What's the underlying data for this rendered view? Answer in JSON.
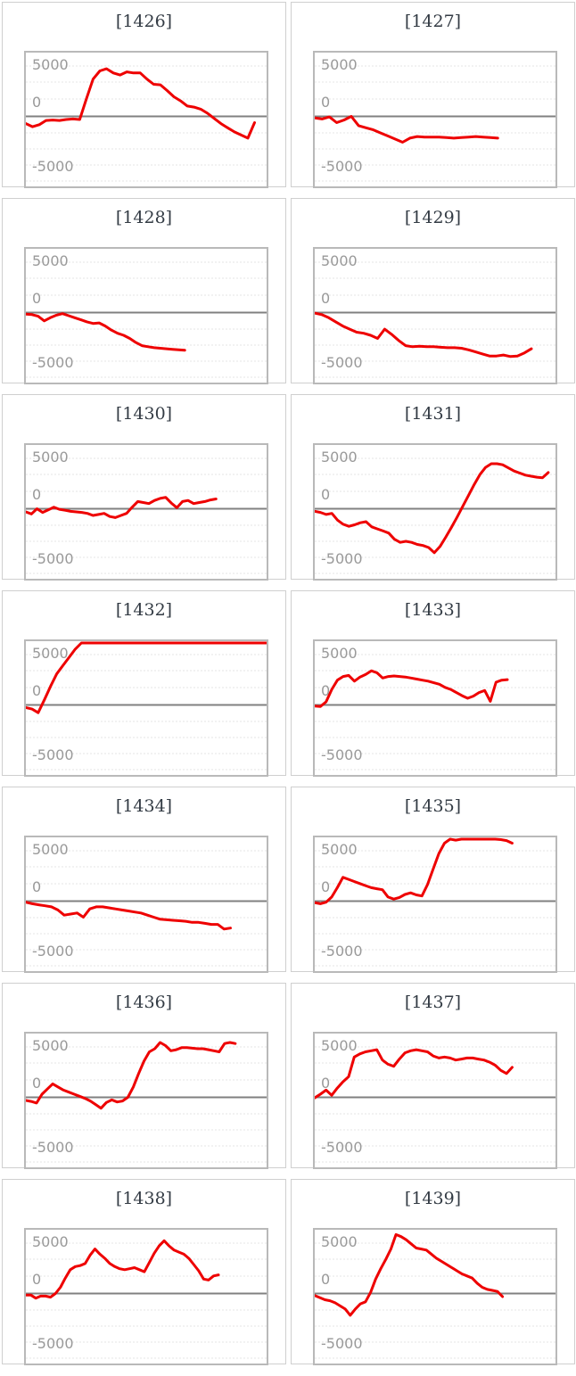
{
  "axis": {
    "labels": [
      "5000",
      "0",
      "-5000"
    ]
  },
  "colors": {
    "series_line": "#ee0000",
    "zero_line": "#808080",
    "grid_line": "#e4e4e4",
    "plot_border": "#b9b9b9",
    "panel_border": "#cfcfcf",
    "axis_label": "#999999",
    "title_text": "#333b44",
    "background": "#ffffff"
  },
  "chart_data": [
    {
      "type": "line",
      "title": "[1426]",
      "ylim": [
        -6700,
        6350
      ],
      "x_end": 0.95,
      "grid": "dashed",
      "zero_line": true,
      "values": [
        -700,
        -1000,
        -800,
        -400,
        -350,
        -400,
        -300,
        -250,
        -300,
        1700,
        3600,
        4400,
        4600,
        4200,
        4000,
        4300,
        4200,
        4200,
        3600,
        3100,
        3050,
        2500,
        1900,
        1500,
        1000,
        900,
        700,
        300,
        -200,
        -700,
        -1100,
        -1500,
        -1800,
        -2100,
        -600
      ]
    },
    {
      "type": "line",
      "title": "[1427]",
      "ylim": [
        -6700,
        6350
      ],
      "x_end": 0.76,
      "grid": "dashed",
      "zero_line": true,
      "values": [
        -150,
        -250,
        -50,
        -600,
        -350,
        0,
        -900,
        -1100,
        -1300,
        -1600,
        -1900,
        -2200,
        -2500,
        -2100,
        -1950,
        -2000,
        -2000,
        -2000,
        -2050,
        -2100,
        -2050,
        -2000,
        -1950,
        -2000,
        -2050,
        -2100
      ]
    },
    {
      "type": "line",
      "title": "[1428]",
      "ylim": [
        -6700,
        6350
      ],
      "x_end": 0.66,
      "grid": "dashed",
      "zero_line": true,
      "values": [
        -150,
        -200,
        -350,
        -800,
        -500,
        -250,
        -100,
        -300,
        -500,
        -700,
        -900,
        -1050,
        -1000,
        -1300,
        -1700,
        -2000,
        -2200,
        -2500,
        -2900,
        -3200,
        -3300,
        -3400,
        -3450,
        -3500,
        -3550,
        -3600,
        -3650
      ]
    },
    {
      "type": "line",
      "title": "[1429]",
      "ylim": [
        -6700,
        6350
      ],
      "x_end": 0.9,
      "grid": "dashed",
      "zero_line": true,
      "values": [
        -50,
        -200,
        -500,
        -900,
        -1300,
        -1600,
        -1900,
        -2000,
        -2200,
        -2500,
        -1600,
        -2100,
        -2700,
        -3200,
        -3300,
        -3250,
        -3300,
        -3300,
        -3350,
        -3400,
        -3400,
        -3450,
        -3600,
        -3800,
        -4000,
        -4200,
        -4200,
        -4100,
        -4250,
        -4200,
        -3900,
        -3500
      ]
    },
    {
      "type": "line",
      "title": "[1430]",
      "ylim": [
        -6700,
        6350
      ],
      "x_end": 0.79,
      "grid": "dashed",
      "zero_line": true,
      "values": [
        -300,
        -500,
        0,
        -350,
        -100,
        150,
        -50,
        -150,
        -250,
        -300,
        -350,
        -450,
        -650,
        -550,
        -450,
        -750,
        -850,
        -650,
        -450,
        150,
        700,
        600,
        500,
        800,
        1000,
        1100,
        550,
        100,
        700,
        800,
        500,
        600,
        700,
        850,
        950
      ]
    },
    {
      "type": "line",
      "title": "[1431]",
      "ylim": [
        -6700,
        6350
      ],
      "x_end": 0.97,
      "grid": "dashed",
      "zero_line": true,
      "values": [
        -250,
        -350,
        -550,
        -450,
        -1100,
        -1500,
        -1700,
        -1550,
        -1350,
        -1250,
        -1750,
        -1950,
        -2150,
        -2350,
        -2950,
        -3250,
        -3150,
        -3250,
        -3450,
        -3550,
        -3750,
        -4250,
        -3650,
        -2750,
        -1800,
        -800,
        250,
        1300,
        2350,
        3300,
        4000,
        4350,
        4350,
        4250,
        3950,
        3650,
        3450,
        3250,
        3150,
        3050,
        3000,
        3500
      ]
    },
    {
      "type": "line",
      "title": "[1432]",
      "ylim": [
        -6700,
        6350
      ],
      "x_end": 1.0,
      "grid": "dashed",
      "zero_line": true,
      "values": [
        -250,
        -400,
        -750,
        500,
        1800,
        3000,
        3800,
        4600,
        5400,
        6200,
        6500,
        6500,
        6500,
        6500,
        6500,
        6500,
        6500,
        6500,
        6500,
        6500,
        6500,
        6500,
        6500,
        6500,
        6500,
        6500,
        6500,
        6500,
        6500,
        6500,
        6500,
        6500,
        6500,
        6500,
        6500,
        6500,
        6500,
        6500,
        6500,
        6500
      ]
    },
    {
      "type": "line",
      "title": "[1433]",
      "ylim": [
        -6700,
        6350
      ],
      "x_end": 0.8,
      "grid": "dashed",
      "zero_line": true,
      "values": [
        -100,
        -150,
        300,
        1500,
        2400,
        2750,
        2850,
        2300,
        2700,
        2950,
        3300,
        3100,
        2600,
        2750,
        2800,
        2750,
        2700,
        2600,
        2500,
        2400,
        2300,
        2150,
        2000,
        1700,
        1500,
        1200,
        900,
        650,
        850,
        1200,
        1400,
        350,
        2200,
        2400,
        2450
      ]
    },
    {
      "type": "line",
      "title": "[1434]",
      "ylim": [
        -6700,
        6350
      ],
      "x_end": 0.85,
      "grid": "dashed",
      "zero_line": true,
      "values": [
        -100,
        -250,
        -350,
        -450,
        -550,
        -850,
        -1350,
        -1250,
        -1150,
        -1550,
        -750,
        -550,
        -550,
        -650,
        -750,
        -850,
        -950,
        -1050,
        -1150,
        -1350,
        -1550,
        -1750,
        -1800,
        -1850,
        -1900,
        -1950,
        -2050,
        -2050,
        -2150,
        -2250,
        -2250,
        -2700,
        -2600
      ]
    },
    {
      "type": "line",
      "title": "[1435]",
      "ylim": [
        -6700,
        6350
      ],
      "x_end": 0.82,
      "grid": "dashed",
      "zero_line": true,
      "values": [
        -150,
        -250,
        -100,
        400,
        1300,
        2300,
        2100,
        1900,
        1700,
        1500,
        1300,
        1200,
        1100,
        400,
        200,
        350,
        650,
        800,
        600,
        500,
        1600,
        3100,
        4600,
        5600,
        6200,
        5900,
        6000,
        6000,
        6100,
        6500,
        6400,
        6200,
        6050,
        5950,
        5850,
        5600
      ]
    },
    {
      "type": "line",
      "title": "[1436]",
      "ylim": [
        -6700,
        6350
      ],
      "x_end": 0.87,
      "grid": "dashed",
      "zero_line": true,
      "values": [
        -300,
        -400,
        -550,
        300,
        800,
        1300,
        1000,
        700,
        500,
        300,
        100,
        -100,
        -350,
        -700,
        -1050,
        -500,
        -250,
        -450,
        -350,
        0,
        1000,
        2300,
        3500,
        4400,
        4700,
        5300,
        5000,
        4500,
        4600,
        4800,
        4800,
        4750,
        4700,
        4700,
        4600,
        4500,
        4400,
        5200,
        5300,
        5200
      ]
    },
    {
      "type": "line",
      "title": "[1437]",
      "ylim": [
        -6700,
        6350
      ],
      "x_end": 0.82,
      "grid": "dashed",
      "zero_line": true,
      "values": [
        -50,
        300,
        700,
        200,
        900,
        1500,
        2000,
        3900,
        4200,
        4400,
        4500,
        4600,
        3600,
        3200,
        3000,
        3700,
        4300,
        4500,
        4600,
        4500,
        4400,
        4000,
        3800,
        3900,
        3800,
        3600,
        3700,
        3800,
        3800,
        3700,
        3600,
        3400,
        3100,
        2600,
        2300,
        2900
      ]
    },
    {
      "type": "line",
      "title": "[1438]",
      "ylim": [
        -6700,
        6350
      ],
      "x_end": 0.8,
      "grid": "dashed",
      "zero_line": true,
      "values": [
        -150,
        -150,
        -450,
        -250,
        -250,
        -350,
        0,
        600,
        1500,
        2300,
        2600,
        2700,
        2900,
        3700,
        4300,
        3800,
        3400,
        2900,
        2600,
        2400,
        2300,
        2400,
        2500,
        2300,
        2100,
        3000,
        3900,
        4600,
        5100,
        4600,
        4200,
        4000,
        3800,
        3400,
        2800,
        2200,
        1400,
        1300,
        1700,
        1800
      ]
    },
    {
      "type": "line",
      "title": "[1439]",
      "ylim": [
        -6700,
        6350
      ],
      "x_end": 0.78,
      "grid": "dashed",
      "zero_line": true,
      "values": [
        -200,
        -400,
        -600,
        -700,
        -900,
        -1200,
        -1500,
        -2100,
        -1500,
        -1000,
        -800,
        100,
        1400,
        2400,
        3300,
        4300,
        5700,
        5500,
        5200,
        4800,
        4400,
        4300,
        4200,
        3800,
        3400,
        3100,
        2800,
        2500,
        2200,
        1900,
        1700,
        1500,
        1000,
        600,
        400,
        300,
        200,
        -300
      ]
    }
  ]
}
